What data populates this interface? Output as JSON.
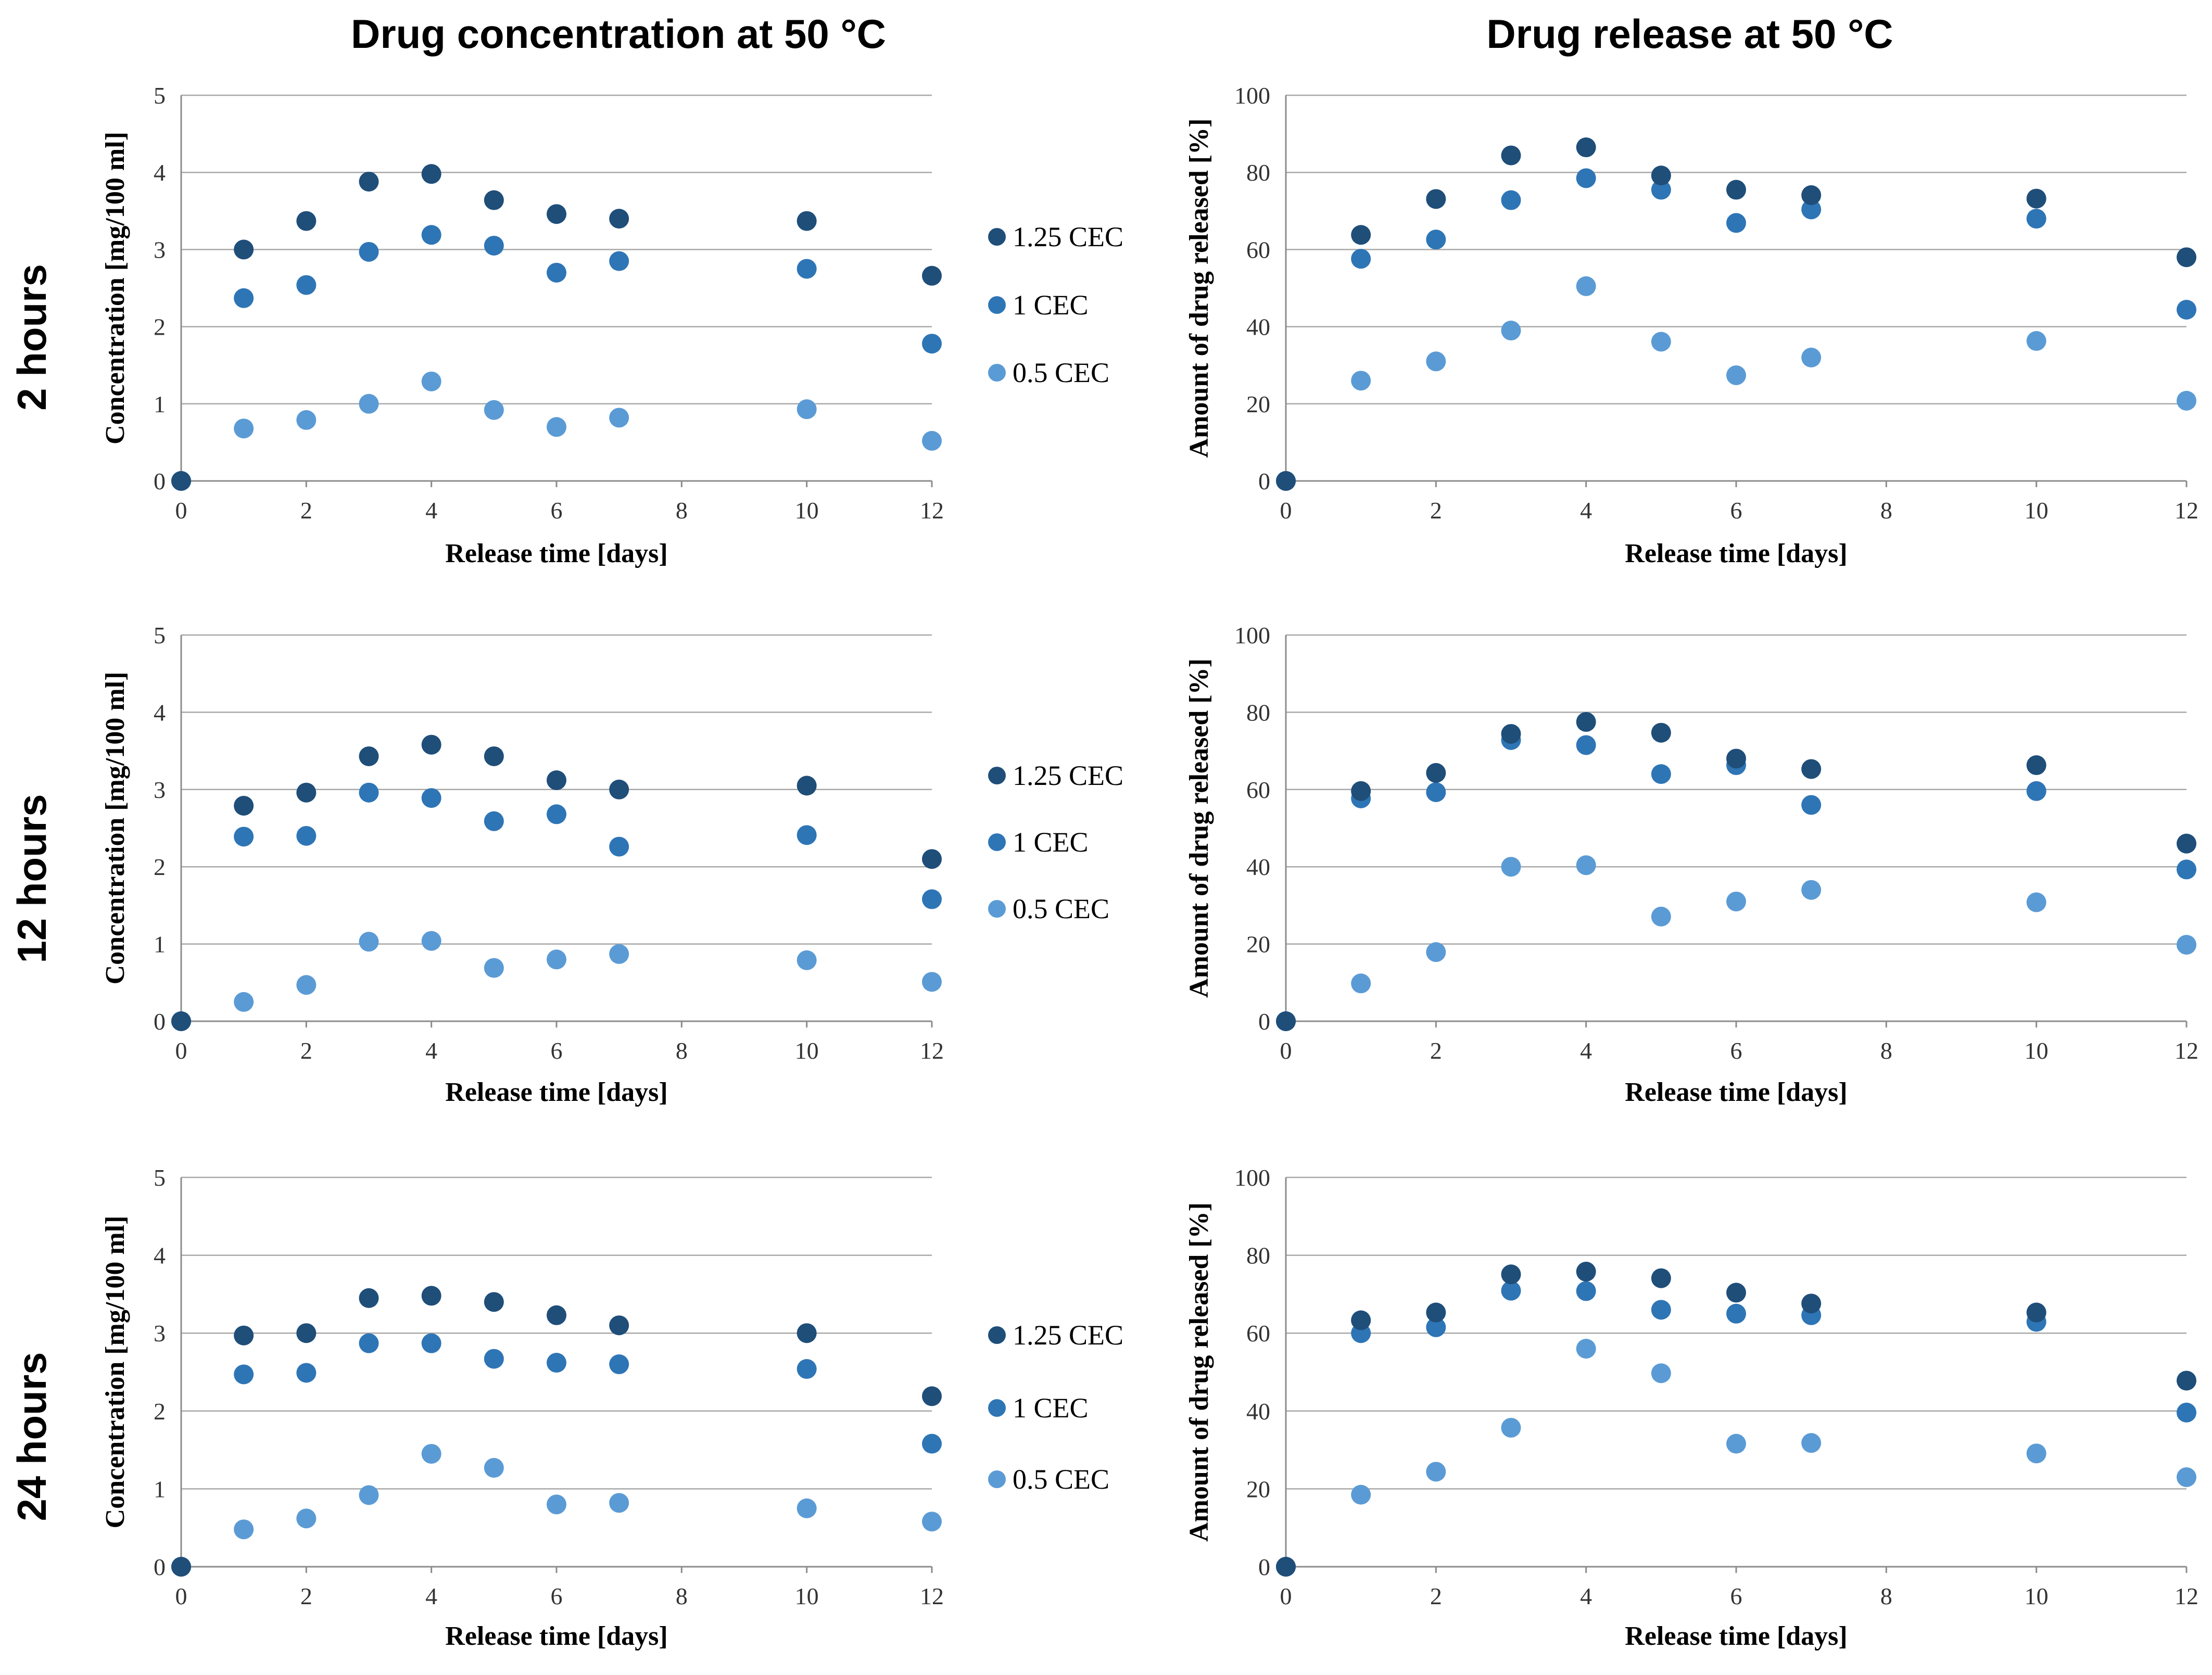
{
  "columns": [
    {
      "title": "Drug concentration at 50 °C"
    },
    {
      "title": "Drug release at 50 °C"
    }
  ],
  "rows": [
    {
      "label": "2 hours"
    },
    {
      "label": "12 hours"
    },
    {
      "label": "24 hours"
    }
  ],
  "colors": {
    "1.25 CEC": "#1f4e79",
    "1 CEC": "#2e75b6",
    "0.5 CEC": "#5b9bd5",
    "grid": "#a8a8a8"
  },
  "chart_data": [
    {
      "type": "scatter",
      "title": "Drug concentration at 50 °C",
      "row": "2 hours",
      "xlabel": "Release time [days]",
      "ylabel": "Concentration [mg/100 ml]",
      "xlim": [
        0,
        12
      ],
      "ylim": [
        0,
        5
      ],
      "xticks": [
        "0",
        "2",
        "4",
        "6",
        "8",
        "10",
        "12"
      ],
      "yticks": [
        "0",
        "1",
        "2",
        "3",
        "4",
        "5"
      ],
      "grid": true,
      "legend": "right",
      "series": [
        {
          "name": "1.25 CEC",
          "points": [
            [
              0,
              0
            ],
            [
              1,
              3.0
            ],
            [
              2,
              3.37
            ],
            [
              3,
              3.88
            ],
            [
              4,
              3.98
            ],
            [
              5,
              3.64
            ],
            [
              6,
              3.46
            ],
            [
              7,
              3.4
            ],
            [
              10,
              3.37
            ],
            [
              12,
              2.66
            ]
          ]
        },
        {
          "name": "1 CEC",
          "points": [
            [
              0,
              0
            ],
            [
              1,
              2.37
            ],
            [
              2,
              2.54
            ],
            [
              3,
              2.97
            ],
            [
              4,
              3.19
            ],
            [
              5,
              3.05
            ],
            [
              6,
              2.7
            ],
            [
              7,
              2.85
            ],
            [
              10,
              2.75
            ],
            [
              12,
              1.78
            ]
          ]
        },
        {
          "name": "0.5 CEC",
          "points": [
            [
              0,
              0
            ],
            [
              1,
              0.68
            ],
            [
              2,
              0.79
            ],
            [
              3,
              1.0
            ],
            [
              4,
              1.29
            ],
            [
              5,
              0.92
            ],
            [
              6,
              0.7
            ],
            [
              7,
              0.82
            ],
            [
              10,
              0.93
            ],
            [
              12,
              0.52
            ]
          ]
        }
      ]
    },
    {
      "type": "scatter",
      "title": "Drug release at 50 °C",
      "row": "2 hours",
      "xlabel": "Release time [days]",
      "ylabel": "Amount of drug released [%]",
      "xlim": [
        0,
        12
      ],
      "ylim": [
        0,
        100
      ],
      "xticks": [
        "0",
        "2",
        "4",
        "6",
        "8",
        "10",
        "12"
      ],
      "yticks": [
        "0",
        "20",
        "40",
        "60",
        "80",
        "100"
      ],
      "grid": true,
      "legend": "none",
      "series": [
        {
          "name": "1.25 CEC",
          "points": [
            [
              0,
              0
            ],
            [
              1,
              63.8
            ],
            [
              2,
              73.1
            ],
            [
              3,
              84.4
            ],
            [
              4,
              86.5
            ],
            [
              5,
              79.2
            ],
            [
              6,
              75.5
            ],
            [
              7,
              74.1
            ],
            [
              10,
              73.2
            ],
            [
              12,
              58.0
            ]
          ]
        },
        {
          "name": "1 CEC",
          "points": [
            [
              0,
              0
            ],
            [
              1,
              57.6
            ],
            [
              2,
              62.6
            ],
            [
              3,
              72.8
            ],
            [
              4,
              78.5
            ],
            [
              5,
              75.5
            ],
            [
              6,
              66.9
            ],
            [
              7,
              70.4
            ],
            [
              10,
              68.0
            ],
            [
              12,
              44.4
            ]
          ]
        },
        {
          "name": "0.5 CEC",
          "points": [
            [
              0,
              0
            ],
            [
              1,
              26.0
            ],
            [
              2,
              31.0
            ],
            [
              3,
              39.0
            ],
            [
              4,
              50.5
            ],
            [
              5,
              36.1
            ],
            [
              6,
              27.4
            ],
            [
              7,
              32.0
            ],
            [
              10,
              36.3
            ],
            [
              12,
              20.8
            ]
          ]
        }
      ]
    },
    {
      "type": "scatter",
      "title": "Drug concentration at 50 °C",
      "row": "12 hours",
      "xlabel": "Release time [days]",
      "ylabel": "Concentration [mg/100 ml]",
      "xlim": [
        0,
        12
      ],
      "ylim": [
        0,
        5
      ],
      "xticks": [
        "0",
        "2",
        "4",
        "6",
        "8",
        "10",
        "12"
      ],
      "yticks": [
        "0",
        "1",
        "2",
        "3",
        "4",
        "5"
      ],
      "grid": true,
      "legend": "right",
      "series": [
        {
          "name": "1.25 CEC",
          "points": [
            [
              0,
              0
            ],
            [
              1,
              2.79
            ],
            [
              2,
              2.96
            ],
            [
              3,
              3.43
            ],
            [
              4,
              3.58
            ],
            [
              5,
              3.43
            ],
            [
              6,
              3.12
            ],
            [
              7,
              3.0
            ],
            [
              10,
              3.05
            ],
            [
              12,
              2.1
            ]
          ]
        },
        {
          "name": "1 CEC",
          "points": [
            [
              0,
              0
            ],
            [
              1,
              2.39
            ],
            [
              2,
              2.4
            ],
            [
              3,
              2.96
            ],
            [
              4,
              2.89
            ],
            [
              5,
              2.59
            ],
            [
              6,
              2.68
            ],
            [
              7,
              2.26
            ],
            [
              10,
              2.41
            ],
            [
              12,
              1.58
            ]
          ]
        },
        {
          "name": "0.5 CEC",
          "points": [
            [
              0,
              0
            ],
            [
              1,
              0.25
            ],
            [
              2,
              0.47
            ],
            [
              3,
              1.03
            ],
            [
              4,
              1.04
            ],
            [
              5,
              0.69
            ],
            [
              6,
              0.8
            ],
            [
              7,
              0.87
            ],
            [
              10,
              0.79
            ],
            [
              12,
              0.51
            ]
          ]
        }
      ]
    },
    {
      "type": "scatter",
      "title": "Drug release at 50 °C",
      "row": "12 hours",
      "xlabel": "Release time [days]",
      "ylabel": "Amount of drug released [%]",
      "xlim": [
        0,
        12
      ],
      "ylim": [
        0,
        100
      ],
      "xticks": [
        "0",
        "2",
        "4",
        "6",
        "8",
        "10",
        "12"
      ],
      "yticks": [
        "0",
        "20",
        "40",
        "60",
        "80",
        "100"
      ],
      "grid": true,
      "legend": "none",
      "series": [
        {
          "name": "1.25 CEC",
          "points": [
            [
              0,
              0
            ],
            [
              1,
              59.6
            ],
            [
              2,
              64.3
            ],
            [
              3,
              74.4
            ],
            [
              4,
              77.5
            ],
            [
              5,
              74.7
            ],
            [
              6,
              68.0
            ],
            [
              7,
              65.3
            ],
            [
              10,
              66.3
            ],
            [
              12,
              46.0
            ]
          ]
        },
        {
          "name": "1 CEC",
          "points": [
            [
              0,
              0
            ],
            [
              1,
              57.7
            ],
            [
              2,
              59.3
            ],
            [
              3,
              72.8
            ],
            [
              4,
              71.5
            ],
            [
              5,
              64.0
            ],
            [
              6,
              66.3
            ],
            [
              7,
              56.0
            ],
            [
              10,
              59.6
            ],
            [
              12,
              39.3
            ]
          ]
        },
        {
          "name": "0.5 CEC",
          "points": [
            [
              0,
              0
            ],
            [
              1,
              9.8
            ],
            [
              2,
              17.9
            ],
            [
              3,
              40.0
            ],
            [
              4,
              40.4
            ],
            [
              5,
              27.1
            ],
            [
              6,
              31.0
            ],
            [
              7,
              34.0
            ],
            [
              10,
              30.8
            ],
            [
              12,
              19.8
            ]
          ]
        }
      ]
    },
    {
      "type": "scatter",
      "title": "Drug concentration at 50 °C",
      "row": "24 hours",
      "xlabel": "Release time [days]",
      "ylabel": "Concentration [mg/100 ml]",
      "xlim": [
        0,
        12
      ],
      "ylim": [
        0,
        5
      ],
      "xticks": [
        "0",
        "2",
        "4",
        "6",
        "8",
        "10",
        "12"
      ],
      "yticks": [
        "0",
        "1",
        "2",
        "3",
        "4",
        "5"
      ],
      "grid": true,
      "legend": "right",
      "series": [
        {
          "name": "1.25 CEC",
          "points": [
            [
              0,
              0
            ],
            [
              1,
              2.97
            ],
            [
              2,
              3.0
            ],
            [
              3,
              3.45
            ],
            [
              4,
              3.48
            ],
            [
              5,
              3.4
            ],
            [
              6,
              3.23
            ],
            [
              7,
              3.1
            ],
            [
              10,
              3.0
            ],
            [
              12,
              2.19
            ]
          ]
        },
        {
          "name": "1 CEC",
          "points": [
            [
              0,
              0
            ],
            [
              1,
              2.47
            ],
            [
              2,
              2.49
            ],
            [
              3,
              2.87
            ],
            [
              4,
              2.87
            ],
            [
              5,
              2.67
            ],
            [
              6,
              2.62
            ],
            [
              7,
              2.6
            ],
            [
              10,
              2.54
            ],
            [
              12,
              1.58
            ]
          ]
        },
        {
          "name": "0.5 CEC",
          "points": [
            [
              0,
              0
            ],
            [
              1,
              0.48
            ],
            [
              2,
              0.62
            ],
            [
              3,
              0.92
            ],
            [
              4,
              1.45
            ],
            [
              5,
              1.27
            ],
            [
              6,
              0.8
            ],
            [
              7,
              0.82
            ],
            [
              10,
              0.75
            ],
            [
              12,
              0.58
            ]
          ]
        }
      ]
    },
    {
      "type": "scatter",
      "title": "Drug release at 50 °C",
      "row": "24 hours",
      "xlabel": "Release time [days]",
      "ylabel": "Amount of drug released [%]",
      "xlim": [
        0,
        12
      ],
      "ylim": [
        0,
        100
      ],
      "xticks": [
        "0",
        "2",
        "4",
        "6",
        "8",
        "10",
        "12"
      ],
      "yticks": [
        "0",
        "20",
        "40",
        "60",
        "80",
        "100"
      ],
      "grid": true,
      "legend": "none",
      "series": [
        {
          "name": "1.25 CEC",
          "points": [
            [
              0,
              0
            ],
            [
              1,
              63.3
            ],
            [
              2,
              65.3
            ],
            [
              3,
              75.1
            ],
            [
              4,
              75.8
            ],
            [
              5,
              74.1
            ],
            [
              6,
              70.4
            ],
            [
              7,
              67.6
            ],
            [
              10,
              65.3
            ],
            [
              12,
              47.8
            ]
          ]
        },
        {
          "name": "1 CEC",
          "points": [
            [
              0,
              0
            ],
            [
              1,
              60.0
            ],
            [
              2,
              61.5
            ],
            [
              3,
              70.9
            ],
            [
              4,
              70.8
            ],
            [
              5,
              66.0
            ],
            [
              6,
              65.0
            ],
            [
              7,
              64.6
            ],
            [
              10,
              62.9
            ],
            [
              12,
              39.6
            ]
          ]
        },
        {
          "name": "0.5 CEC",
          "points": [
            [
              0,
              0
            ],
            [
              1,
              18.5
            ],
            [
              2,
              24.4
            ],
            [
              3,
              35.7
            ],
            [
              4,
              56.0
            ],
            [
              5,
              49.7
            ],
            [
              6,
              31.6
            ],
            [
              7,
              31.8
            ],
            [
              10,
              29.1
            ],
            [
              12,
              23.0
            ]
          ]
        }
      ]
    }
  ]
}
